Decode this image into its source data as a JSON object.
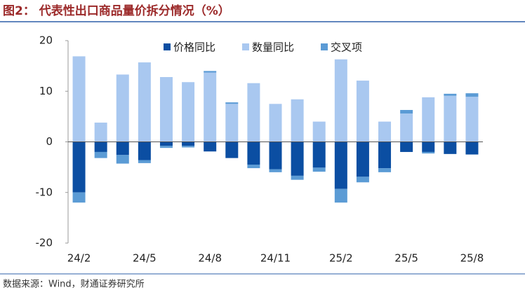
{
  "title": "图2：  代表性出口商品量价拆分情况（%）",
  "source": "数据来源：Wind，财通证券研究所",
  "chart_data": {
    "type": "stacked_bar",
    "categories": [
      "24/2",
      null,
      null,
      "24/5",
      null,
      null,
      "24/8",
      null,
      null,
      "24/11",
      null,
      null,
      "25/2",
      null,
      null,
      "25/5",
      null,
      null,
      "25/8"
    ],
    "series": [
      {
        "name": "价格同比",
        "color": "#0b4ea2",
        "values": [
          -10,
          -2.0,
          -2.6,
          -3.6,
          -0.8,
          -0.8,
          -1.9,
          -3.2,
          -4.5,
          -5.4,
          -6.7,
          -5.1,
          -9.3,
          -6.9,
          -5.2,
          -2.0,
          -2.0,
          -2.4,
          -2.5
        ]
      },
      {
        "name": "数量同比",
        "color": "#a9c8f0",
        "values": [
          16.9,
          3.8,
          13.3,
          15.7,
          12.8,
          11.8,
          13.7,
          7.5,
          11.6,
          7.5,
          8.4,
          4.0,
          16.3,
          12.1,
          4.0,
          5.6,
          8.8,
          9.1,
          8.9
        ]
      },
      {
        "name": "交叉项",
        "color": "#5b9bd5",
        "values": [
          -2.0,
          -1.2,
          -1.7,
          -0.6,
          -0.4,
          -0.3,
          0.3,
          0.3,
          -0.7,
          -0.6,
          -0.8,
          -0.8,
          -2.7,
          -1.1,
          -0.8,
          0.7,
          -0.3,
          0.4,
          0.7
        ]
      }
    ],
    "ylim": [
      -20,
      20
    ],
    "yticks": [
      20,
      10,
      0,
      -10,
      -20
    ],
    "grid": false
  }
}
